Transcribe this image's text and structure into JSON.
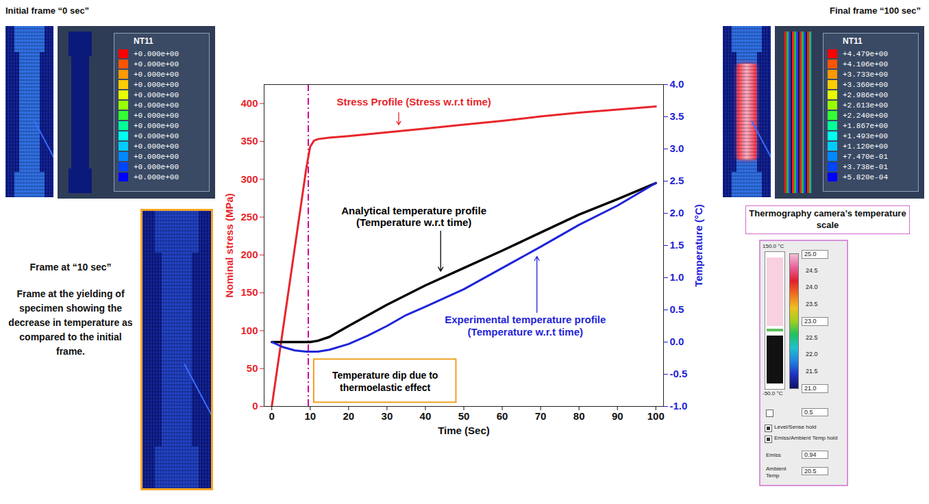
{
  "chart_data": {
    "type": "line",
    "xlabel": "Time (Sec)",
    "ylabel": "Nominal stress (MPa)",
    "y2label": "Temperature (°C)",
    "xlim": [
      -2,
      102
    ],
    "xticks": [
      0,
      10,
      20,
      30,
      40,
      50,
      60,
      70,
      80,
      90,
      100
    ],
    "ylim": [
      0,
      425
    ],
    "yticks": [
      0,
      50,
      100,
      150,
      200,
      250,
      300,
      350,
      400
    ],
    "y2lim": [
      -1,
      4
    ],
    "y2ticks": [
      {
        "value": -1,
        "label": "-1.0"
      },
      -0.5,
      {
        "value": 0,
        "label": "0.0"
      },
      0.5,
      {
        "value": 1,
        "label": "1.0"
      },
      1.5,
      {
        "value": 2,
        "label": "2.0"
      },
      2.5,
      {
        "value": 3,
        "label": "3.0"
      },
      3.5,
      {
        "value": 4,
        "label": "4.0"
      }
    ],
    "series": [
      {
        "name": "Stress Profile (Stress w.r.t time)",
        "color": "#e8262b",
        "axis": "y",
        "x": [
          0,
          2,
          4,
          6,
          8,
          9,
          10,
          11,
          12,
          15,
          20,
          30,
          40,
          50,
          60,
          70,
          80,
          90,
          100
        ],
        "values": [
          0,
          70,
          140,
          210,
          280,
          315,
          343,
          351,
          353,
          355,
          357,
          362,
          367,
          372,
          377,
          383,
          388,
          392,
          396
        ]
      },
      {
        "name": "Analytical temperature profile (Temperature w.r.t time)",
        "color": "#000000",
        "axis": "y2",
        "x": [
          0,
          5,
          10,
          12,
          15,
          20,
          30,
          40,
          50,
          60,
          70,
          80,
          90,
          100
        ],
        "values": [
          0,
          0,
          0,
          0.02,
          0.08,
          0.25,
          0.58,
          0.88,
          1.15,
          1.42,
          1.7,
          1.98,
          2.22,
          2.47
        ]
      },
      {
        "name": "Experimental temperature profile (Temperature w.r.t time)",
        "color": "#1f24d8",
        "axis": "y2",
        "x": [
          0,
          3,
          6,
          9,
          12,
          15,
          20,
          25,
          30,
          35,
          40,
          50,
          60,
          70,
          80,
          90,
          100
        ],
        "values": [
          0,
          -0.08,
          -0.13,
          -0.15,
          -0.15,
          -0.12,
          -0.03,
          0.1,
          0.25,
          0.42,
          0.55,
          0.82,
          1.15,
          1.48,
          1.82,
          2.12,
          2.47
        ]
      }
    ],
    "reference_lines": [
      {
        "x": 9.5,
        "color": "#d4009a",
        "line_style": "dashdot"
      }
    ],
    "annotations": [
      {
        "text": "Temperature dip due to thermoelastic effect"
      }
    ]
  },
  "figure": {
    "initial_frame": {
      "title": "Initial frame “0 sec”",
      "legend_title": "NT11",
      "legend_values": [
        "+0.000e+00",
        "+0.000e+00",
        "+0.000e+00",
        "+0.000e+00",
        "+0.000e+00",
        "+0.000e+00",
        "+0.000e+00",
        "+0.000e+00",
        "+0.000e+00",
        "+0.000e+00",
        "+0.000e+00",
        "+0.000e+00",
        "+0.000e+00"
      ]
    },
    "final_frame": {
      "title": "Final frame “100 sec”",
      "legend_title": "NT11",
      "legend_values": [
        "+4.479e+00",
        "+4.106e+00",
        "+3.733e+00",
        "+3.360e+00",
        "+2.986e+00",
        "+2.613e+00",
        "+2.240e+00",
        "+1.867e+00",
        "+1.493e+00",
        "+1.120e+00",
        "+7.470e-01",
        "+3.738e-01",
        "+5.820e-04"
      ]
    },
    "yield_frame": {
      "title": "Frame at “10 sec”",
      "caption": "Frame at the yielding of specimen showing the decrease in temperature as compared to the initial frame."
    },
    "camera_scale": {
      "label": "Thermography camera’s temperature scale",
      "range_top": "150.0 °C",
      "range_bottom": "-50.0 °C",
      "scale_labels": [
        "25.0",
        "24.5",
        "24.0",
        "23.5",
        "23.0",
        "22.5",
        "22.0",
        "21.5",
        "21.0"
      ],
      "step": "0.5",
      "checkboxes": [
        "Level/Sense hold",
        "Emiss/Ambient Temp hold"
      ],
      "emissivity": {
        "label": "Emiss",
        "value": "0.94"
      },
      "ambient": {
        "label": "Ambient Temp",
        "value": "20.5"
      }
    }
  }
}
